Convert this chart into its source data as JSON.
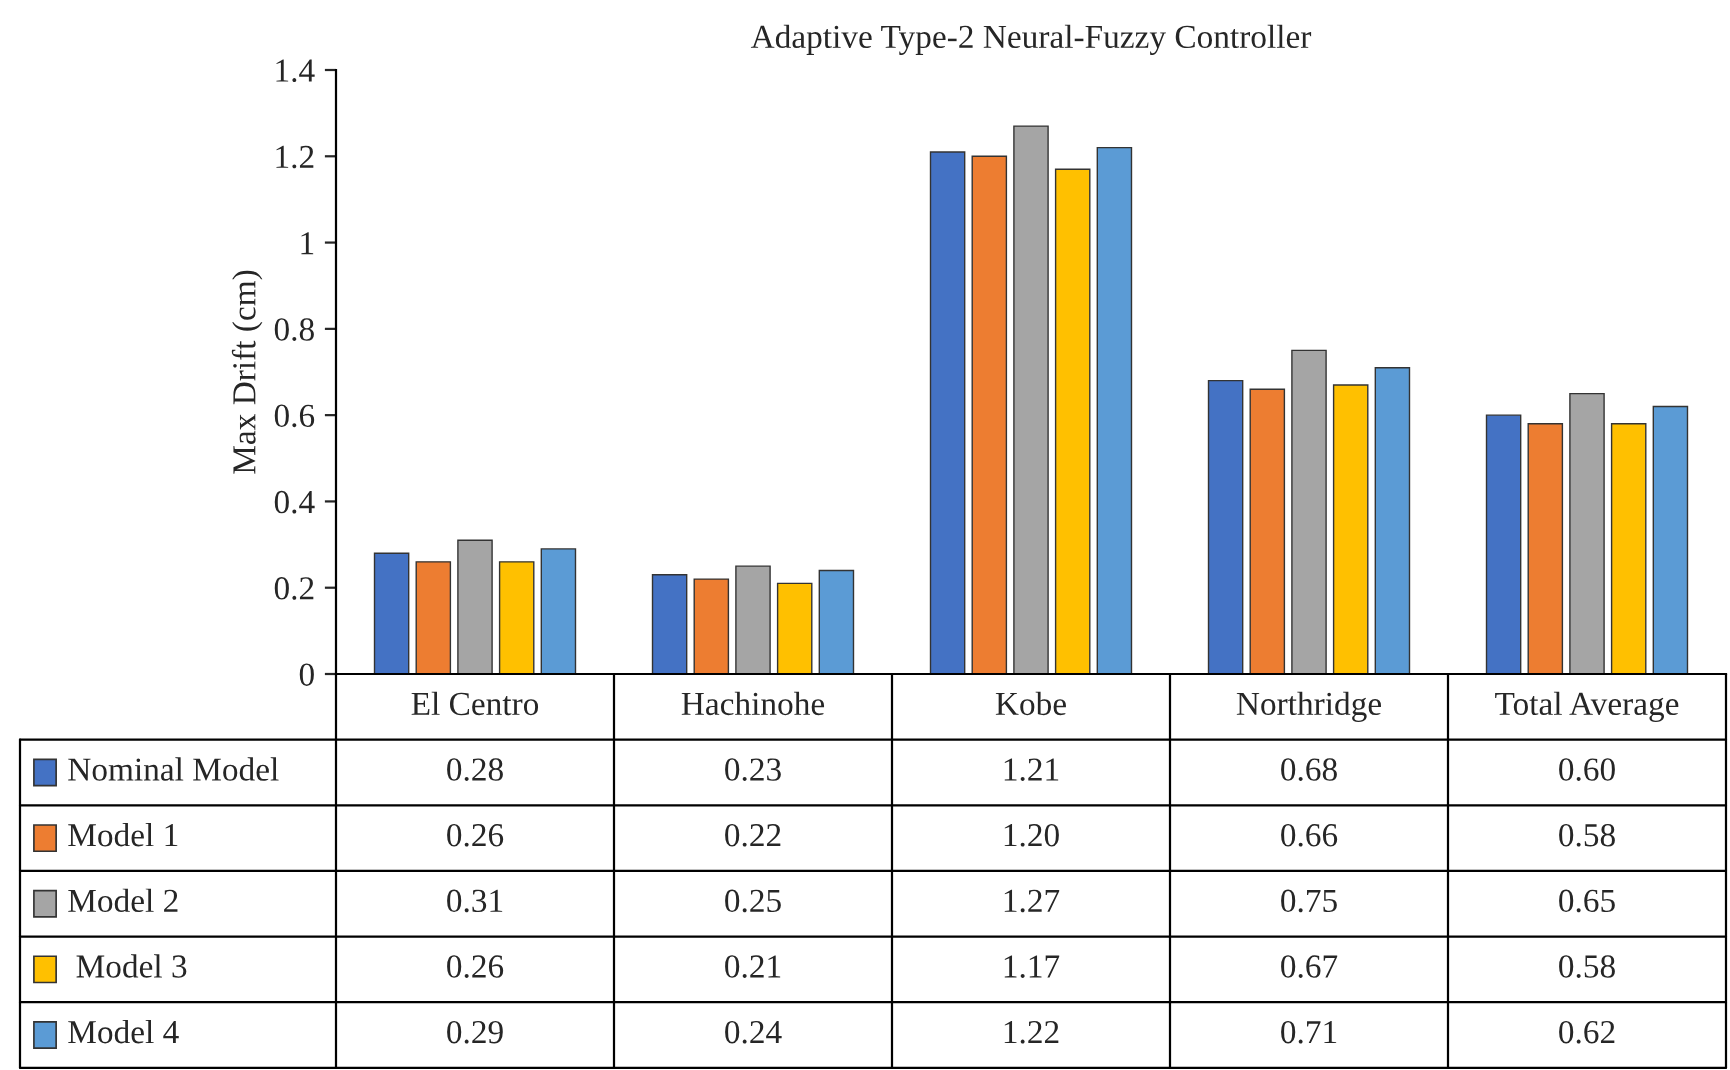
{
  "chart_data": {
    "type": "bar",
    "title": "Adaptive Type-2 Neural-Fuzzy Controller",
    "ylabel": "Max Drift (cm)",
    "categories": [
      "El Centro",
      "Hachinohe",
      "Kobe",
      "Northridge",
      "Total Average"
    ],
    "series": [
      {
        "name": "Nominal Model",
        "color": "#4472c4",
        "values": [
          0.28,
          0.23,
          1.21,
          0.68,
          0.6
        ],
        "value_labels": [
          "0.28",
          "0.23",
          "1.21",
          "0.68",
          "0.60"
        ]
      },
      {
        "name": "Model 1",
        "color": "#ed7d31",
        "values": [
          0.26,
          0.22,
          1.2,
          0.66,
          0.58
        ],
        "value_labels": [
          "0.26",
          "0.22",
          "1.20",
          "0.66",
          "0.58"
        ]
      },
      {
        "name": "Model 2",
        "color": "#a5a5a5",
        "values": [
          0.31,
          0.25,
          1.27,
          0.75,
          0.65
        ],
        "value_labels": [
          "0.31",
          "0.25",
          "1.27",
          "0.75",
          "0.65"
        ]
      },
      {
        "name": " Model 3",
        "color": "#ffc000",
        "values": [
          0.26,
          0.21,
          1.17,
          0.67,
          0.58
        ],
        "value_labels": [
          "0.26",
          "0.21",
          "1.17",
          "0.67",
          "0.58"
        ]
      },
      {
        "name": "Model 4",
        "color": "#5b9bd5",
        "values": [
          0.29,
          0.24,
          1.22,
          0.71,
          0.62
        ],
        "value_labels": [
          "0.29",
          "0.24",
          "1.22",
          "0.71",
          "0.62"
        ]
      }
    ],
    "ylim": [
      0,
      1.4
    ],
    "yticks": [
      0,
      0.2,
      0.4,
      0.6,
      0.8,
      1,
      1.2,
      1.4
    ],
    "grid": false,
    "legend": "bottom",
    "tick_labels": "y"
  }
}
